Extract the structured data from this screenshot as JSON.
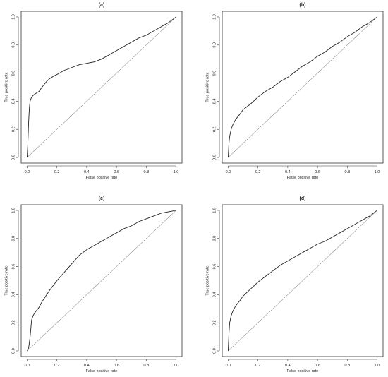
{
  "chart_data": [
    {
      "type": "line",
      "title": "(a)",
      "xlabel": "False positive rate",
      "ylabel": "True positive rate",
      "xlim": [
        0,
        1
      ],
      "ylim": [
        0,
        1
      ],
      "xticks": [
        "0.0",
        "0.2",
        "0.4",
        "0.6",
        "0.8",
        "1.0"
      ],
      "yticks": [
        "0.0",
        "0.2",
        "0.4",
        "0.6",
        "0.8",
        "1.0"
      ],
      "grid": false,
      "series": [
        {
          "x": [
            0,
            0.005,
            0.01,
            0.015,
            0.02,
            0.03,
            0.05,
            0.08,
            0.1,
            0.13,
            0.15,
            0.18,
            0.2,
            0.25,
            0.3,
            0.35,
            0.4,
            0.45,
            0.5,
            0.55,
            0.6,
            0.65,
            0.7,
            0.75,
            0.8,
            0.85,
            0.9,
            0.95,
            1.0
          ],
          "y": [
            0,
            0.1,
            0.25,
            0.35,
            0.4,
            0.43,
            0.45,
            0.47,
            0.5,
            0.54,
            0.56,
            0.58,
            0.59,
            0.62,
            0.64,
            0.66,
            0.67,
            0.68,
            0.7,
            0.73,
            0.76,
            0.79,
            0.82,
            0.85,
            0.87,
            0.9,
            0.93,
            0.96,
            1.0
          ]
        },
        {
          "x": [
            0,
            1
          ],
          "y": [
            0,
            1
          ]
        }
      ]
    },
    {
      "type": "line",
      "title": "(b)",
      "xlabel": "False positive rate",
      "ylabel": "True positive rate",
      "xlim": [
        0,
        1
      ],
      "ylim": [
        0,
        1
      ],
      "xticks": [
        "0.0",
        "0.2",
        "0.4",
        "0.6",
        "0.8",
        "1.0"
      ],
      "yticks": [
        "0.0",
        "0.2",
        "0.4",
        "0.6",
        "0.8",
        "1.0"
      ],
      "grid": false,
      "series": [
        {
          "x": [
            0,
            0.005,
            0.01,
            0.02,
            0.03,
            0.05,
            0.08,
            0.1,
            0.15,
            0.2,
            0.25,
            0.3,
            0.35,
            0.4,
            0.45,
            0.5,
            0.55,
            0.6,
            0.65,
            0.7,
            0.75,
            0.8,
            0.85,
            0.9,
            0.95,
            1.0
          ],
          "y": [
            0,
            0.1,
            0.15,
            0.2,
            0.23,
            0.27,
            0.31,
            0.34,
            0.38,
            0.43,
            0.47,
            0.5,
            0.54,
            0.57,
            0.61,
            0.65,
            0.68,
            0.72,
            0.75,
            0.79,
            0.82,
            0.86,
            0.89,
            0.93,
            0.96,
            1.0
          ]
        },
        {
          "x": [
            0,
            1
          ],
          "y": [
            0,
            1
          ]
        }
      ]
    },
    {
      "type": "line",
      "title": "(c)",
      "xlabel": "False positive rate",
      "ylabel": "True positive rate",
      "xlim": [
        0,
        1
      ],
      "ylim": [
        0,
        1
      ],
      "xticks": [
        "0.0",
        "0.2",
        "0.4",
        "0.6",
        "0.8",
        "1.0"
      ],
      "yticks": [
        "0.0",
        "0.2",
        "0.4",
        "0.6",
        "0.8",
        "1.0"
      ],
      "grid": false,
      "series": [
        {
          "x": [
            0,
            0.01,
            0.02,
            0.03,
            0.04,
            0.05,
            0.08,
            0.1,
            0.15,
            0.2,
            0.25,
            0.3,
            0.35,
            0.4,
            0.45,
            0.5,
            0.55,
            0.6,
            0.65,
            0.7,
            0.75,
            0.8,
            0.85,
            0.9,
            0.95,
            1.0
          ],
          "y": [
            0,
            0.02,
            0.1,
            0.22,
            0.25,
            0.27,
            0.31,
            0.35,
            0.43,
            0.5,
            0.56,
            0.62,
            0.68,
            0.72,
            0.75,
            0.78,
            0.81,
            0.84,
            0.87,
            0.89,
            0.92,
            0.94,
            0.96,
            0.98,
            0.99,
            1.0
          ]
        },
        {
          "x": [
            0,
            1
          ],
          "y": [
            0,
            1
          ]
        }
      ]
    },
    {
      "type": "line",
      "title": "(d)",
      "xlabel": "False positive rate",
      "ylabel": "True positive rate",
      "xlim": [
        0,
        1
      ],
      "ylim": [
        0,
        1
      ],
      "xticks": [
        "0.0",
        "0.2",
        "0.4",
        "0.6",
        "0.8",
        "1.0"
      ],
      "yticks": [
        "0.0",
        "0.2",
        "0.4",
        "0.6",
        "0.8",
        "1.0"
      ],
      "grid": false,
      "series": [
        {
          "x": [
            0,
            0.005,
            0.01,
            0.02,
            0.03,
            0.05,
            0.08,
            0.1,
            0.15,
            0.2,
            0.25,
            0.3,
            0.35,
            0.4,
            0.45,
            0.5,
            0.55,
            0.6,
            0.65,
            0.7,
            0.75,
            0.8,
            0.85,
            0.9,
            0.95,
            1.0
          ],
          "y": [
            0,
            0.12,
            0.2,
            0.25,
            0.28,
            0.32,
            0.36,
            0.39,
            0.44,
            0.49,
            0.53,
            0.57,
            0.61,
            0.64,
            0.67,
            0.7,
            0.73,
            0.76,
            0.78,
            0.81,
            0.84,
            0.87,
            0.9,
            0.93,
            0.96,
            1.0
          ]
        },
        {
          "x": [
            0,
            1
          ],
          "y": [
            0,
            1
          ]
        }
      ]
    }
  ]
}
